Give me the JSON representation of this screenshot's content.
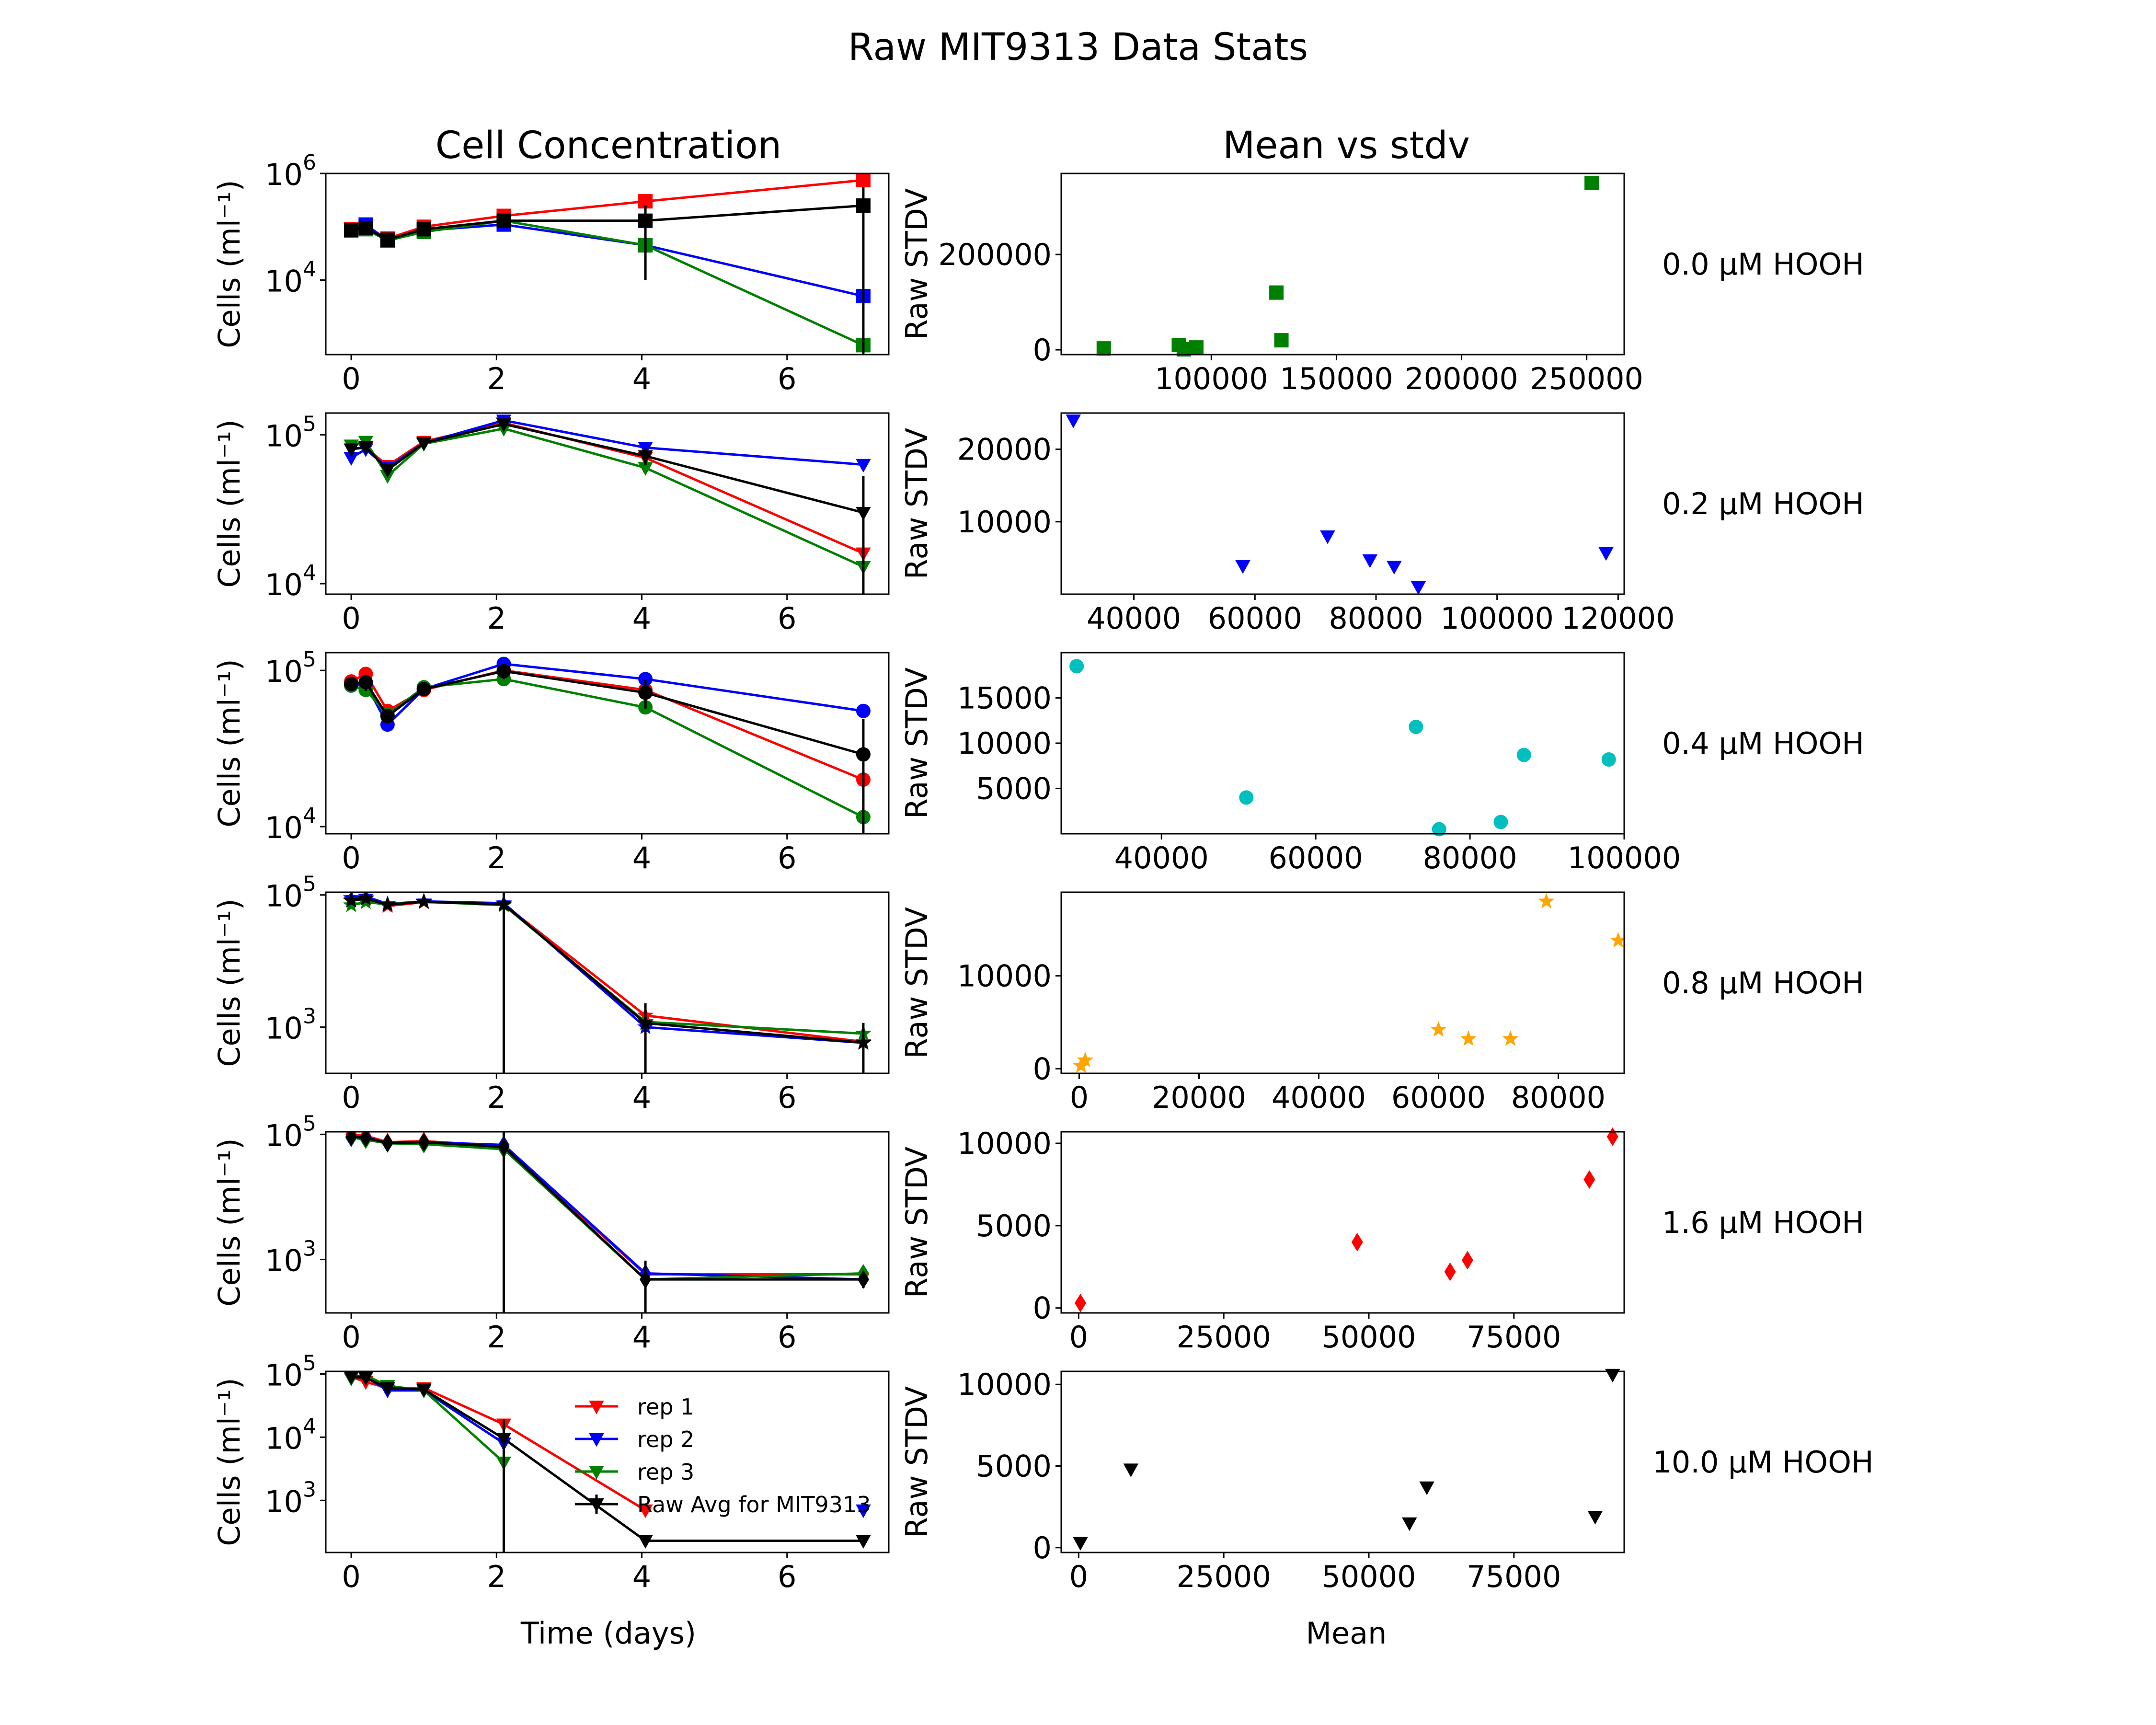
{
  "title": "Raw MIT9313 Data Stats",
  "column_titles": {
    "left": "Cell Concentration",
    "right": "Mean vs stdv"
  },
  "left_ylabel": "Cells (ml⁻¹)",
  "right_ylabel": "Raw STDV",
  "left_xlabel": "Time (days)",
  "right_xlabel": "Mean",
  "legend": {
    "location": "bottom-left panel, lower middle",
    "entries": [
      "rep 1",
      "rep 2",
      "rep 3",
      "Raw Avg for MIT9313"
    ]
  },
  "colors": {
    "rep1": "#ff0000",
    "rep2": "#0000ff",
    "rep3": "#008000",
    "avg": "#000000"
  },
  "chart_data": [
    {
      "type": "line",
      "scale": "log-y",
      "treatment": "0.0 µM HOOH",
      "marker": "square",
      "xlim": [
        -0.35,
        7.4
      ],
      "ylim": [
        400,
        1000000
      ],
      "x": [
        0,
        0.2,
        0.5,
        1,
        2.1,
        4.05,
        7.05
      ],
      "xticks": [
        0,
        2,
        4,
        6
      ],
      "yticks": [
        {
          "value": 10000,
          "base": "10",
          "exp": "4"
        },
        {
          "value": 1000000,
          "base": "10",
          "exp": "6"
        }
      ],
      "series": [
        {
          "name": "rep 1",
          "color": "#ff0000",
          "values": [
            90000,
            100000,
            60000,
            100000,
            160000,
            300000,
            750000
          ]
        },
        {
          "name": "rep 2",
          "color": "#0000ff",
          "values": [
            85000,
            110000,
            55000,
            85000,
            110000,
            45000,
            5000
          ]
        },
        {
          "name": "rep 3",
          "color": "#008000",
          "values": [
            85000,
            90000,
            55000,
            80000,
            130000,
            45000,
            600
          ]
        },
        {
          "name": "Raw Avg for MIT9313",
          "color": "#000000",
          "values": [
            87000,
            95000,
            57000,
            90000,
            130000,
            130000,
            250000
          ],
          "errors": [
            3000,
            10000,
            3000,
            10000,
            20000,
            120000,
            300000
          ]
        }
      ],
      "stats": {
        "color": "#008000",
        "xlim": [
          40000,
          265000
        ],
        "ylim": [
          -10000,
          370000
        ],
        "xticks": [
          100000,
          150000,
          200000,
          250000
        ],
        "yticks": [
          0,
          200000
        ],
        "points": [
          [
            57000,
            3000
          ],
          [
            87000,
            10000
          ],
          [
            89000,
            1000
          ],
          [
            94000,
            5000
          ],
          [
            126000,
            120000
          ],
          [
            128000,
            20000
          ],
          [
            252000,
            350000
          ]
        ]
      }
    },
    {
      "type": "line",
      "scale": "log-y",
      "treatment": "0.2 µM HOOH",
      "marker": "triangle-down",
      "xlim": [
        -0.35,
        7.4
      ],
      "ylim": [
        8500,
        140000
      ],
      "x": [
        0,
        0.2,
        0.5,
        1,
        2.1,
        4.05,
        7.05
      ],
      "xticks": [
        0,
        2,
        4,
        6
      ],
      "yticks": [
        {
          "value": 10000,
          "base": "10",
          "exp": "4"
        },
        {
          "value": 100000,
          "base": "10",
          "exp": "5"
        }
      ],
      "series": [
        {
          "name": "rep 1",
          "color": "#ff0000",
          "values": [
            80000,
            82000,
            62000,
            90000,
            120000,
            70000,
            16000
          ]
        },
        {
          "name": "rep 2",
          "color": "#0000ff",
          "values": [
            70000,
            80000,
            60000,
            88000,
            125000,
            82000,
            63000
          ]
        },
        {
          "name": "rep 3",
          "color": "#008000",
          "values": [
            85000,
            90000,
            53000,
            87000,
            110000,
            60000,
            13000
          ]
        },
        {
          "name": "Raw Avg for MIT9313",
          "color": "#000000",
          "values": [
            80000,
            83000,
            58000,
            88000,
            118000,
            72000,
            30000
          ],
          "errors": [
            8000,
            5000,
            4000,
            2000,
            6000,
            9000,
            23000
          ]
        }
      ],
      "stats": {
        "color": "#0000ff",
        "xlim": [
          28000,
          121000
        ],
        "ylim": [
          0,
          25000
        ],
        "xticks": [
          40000,
          60000,
          80000,
          100000,
          120000
        ],
        "yticks": [
          10000,
          20000
        ],
        "points": [
          [
            30000,
            24000
          ],
          [
            58000,
            3900
          ],
          [
            72000,
            8000
          ],
          [
            79000,
            4700
          ],
          [
            83000,
            3800
          ],
          [
            87000,
            1000
          ],
          [
            118000,
            5700
          ]
        ]
      }
    },
    {
      "type": "line",
      "scale": "log-y",
      "treatment": "0.4 µM HOOH",
      "marker": "circle",
      "xlim": [
        -0.35,
        7.4
      ],
      "ylim": [
        9000,
        130000
      ],
      "x": [
        0,
        0.2,
        0.5,
        1,
        2.1,
        4.05,
        7.05
      ],
      "xticks": [
        0,
        2,
        4,
        6
      ],
      "yticks": [
        {
          "value": 10000,
          "base": "10",
          "exp": "4"
        },
        {
          "value": 100000,
          "base": "10",
          "exp": "5"
        }
      ],
      "series": [
        {
          "name": "rep 1",
          "color": "#ff0000",
          "values": [
            85000,
            95000,
            55000,
            75000,
            100000,
            75000,
            20000
          ]
        },
        {
          "name": "rep 2",
          "color": "#0000ff",
          "values": [
            80000,
            82000,
            45000,
            76000,
            110000,
            88000,
            55000
          ]
        },
        {
          "name": "rep 3",
          "color": "#008000",
          "values": [
            80000,
            75000,
            52000,
            78000,
            88000,
            58000,
            11500
          ]
        },
        {
          "name": "Raw Avg for MIT9313",
          "color": "#000000",
          "values": [
            82000,
            84000,
            51000,
            76000,
            99000,
            72000,
            29000
          ],
          "errors": [
            3000,
            10000,
            5000,
            2000,
            11000,
            15000,
            20000
          ]
        }
      ],
      "stats": {
        "color": "#00bfbf",
        "xlim": [
          27000,
          100000
        ],
        "ylim": [
          0,
          20000
        ],
        "xticks": [
          40000,
          60000,
          80000,
          100000
        ],
        "yticks": [
          5000,
          10000,
          15000
        ],
        "points": [
          [
            29000,
            18500
          ],
          [
            51000,
            4000
          ],
          [
            73000,
            11800
          ],
          [
            76000,
            500
          ],
          [
            84000,
            1300
          ],
          [
            87000,
            8700
          ],
          [
            98000,
            8200
          ]
        ]
      }
    },
    {
      "type": "line",
      "scale": "log-y",
      "treatment": "0.8 µM HOOH",
      "marker": "star",
      "xlim": [
        -0.35,
        7.4
      ],
      "ylim": [
        200,
        110000
      ],
      "x": [
        0,
        0.2,
        0.5,
        1,
        2.1,
        4.05,
        7.05
      ],
      "xticks": [
        0,
        2,
        4,
        6
      ],
      "yticks": [
        {
          "value": 1000,
          "base": "10",
          "exp": "3"
        },
        {
          "value": 100000,
          "base": "10",
          "exp": "5"
        }
      ],
      "series": [
        {
          "name": "rep 1",
          "color": "#ff0000",
          "values": [
            85000,
            90000,
            68000,
            78000,
            72000,
            1500,
            600
          ]
        },
        {
          "name": "rep 2",
          "color": "#0000ff",
          "values": [
            90000,
            95000,
            73000,
            80000,
            75000,
            1000,
            580
          ]
        },
        {
          "name": "rep 3",
          "color": "#008000",
          "values": [
            70000,
            78000,
            72000,
            79000,
            70000,
            1200,
            800
          ]
        },
        {
          "name": "Raw Avg for MIT9313",
          "color": "#000000",
          "values": [
            82000,
            88000,
            71000,
            79000,
            72000,
            1150,
            580
          ],
          "errors": [
            10000,
            8000,
            2000,
            1000,
            72000,
            1150,
            580
          ]
        }
      ],
      "stats": {
        "color": "#ffa500",
        "xlim": [
          -3000,
          91000
        ],
        "ylim": [
          -500,
          19000
        ],
        "xticks": [
          0,
          20000,
          40000,
          60000,
          80000
        ],
        "yticks": [
          0,
          10000
        ],
        "points": [
          [
            300,
            300
          ],
          [
            1000,
            900
          ],
          [
            60000,
            4200
          ],
          [
            65000,
            3200
          ],
          [
            72000,
            3200
          ],
          [
            78000,
            18000
          ],
          [
            90000,
            13800
          ]
        ]
      }
    },
    {
      "type": "line",
      "scale": "log-y",
      "treatment": "1.6 µM HOOH",
      "marker": "diamond",
      "xlim": [
        -0.35,
        7.4
      ],
      "ylim": [
        140,
        110000
      ],
      "x": [
        0,
        0.2,
        0.5,
        1,
        2.1,
        4.05,
        7.05
      ],
      "xticks": [
        0,
        2,
        4,
        6
      ],
      "yticks": [
        {
          "value": 1000,
          "base": "10",
          "exp": "3"
        },
        {
          "value": 100000,
          "base": "10",
          "exp": "5"
        }
      ],
      "series": [
        {
          "name": "rep 1",
          "color": "#ff0000",
          "values": [
            100000,
            95000,
            75000,
            78000,
            65000,
            580,
            580
          ]
        },
        {
          "name": "rep 2",
          "color": "#0000ff",
          "values": [
            88000,
            90000,
            72000,
            75000,
            68000,
            600,
            480
          ]
        },
        {
          "name": "rep 3",
          "color": "#008000",
          "values": [
            90000,
            82000,
            72000,
            70000,
            58000,
            480,
            600
          ]
        },
        {
          "name": "Raw Avg for MIT9313",
          "color": "#000000",
          "values": [
            92000,
            88000,
            73000,
            75000,
            63000,
            480,
            480
          ],
          "errors": [
            7000,
            6000,
            2000,
            4000,
            63000,
            480,
            130
          ]
        }
      ],
      "stats": {
        "color": "#ff0000",
        "xlim": [
          -3000,
          94000
        ],
        "ylim": [
          -300,
          10700
        ],
        "xticks": [
          0,
          25000,
          50000,
          75000
        ],
        "yticks": [
          0,
          5000,
          10000
        ],
        "points": [
          [
            300,
            300
          ],
          [
            48000,
            4000
          ],
          [
            64000,
            2200
          ],
          [
            67000,
            2900
          ],
          [
            88000,
            7800
          ],
          [
            92000,
            10400
          ]
        ]
      }
    },
    {
      "type": "line",
      "scale": "log-y",
      "treatment": "10.0 µM HOOH",
      "marker": "triangle-down",
      "xlim": [
        -0.35,
        7.4
      ],
      "ylim": [
        150,
        110000
      ],
      "x": [
        0,
        0.2,
        0.5,
        1,
        2.1,
        4.05,
        7.05
      ],
      "xticks": [
        0,
        2,
        4,
        6
      ],
      "yticks": [
        {
          "value": 1000,
          "base": "10",
          "exp": "3"
        },
        {
          "value": 10000,
          "base": "10",
          "exp": "4"
        },
        {
          "value": 100000,
          "base": "10",
          "exp": "5"
        }
      ],
      "series": [
        {
          "name": "rep 1",
          "color": "#ff0000",
          "values": [
            90000,
            75000,
            60000,
            60000,
            16000,
            700,
            null
          ]
        },
        {
          "name": "rep 2",
          "color": "#0000ff",
          "values": [
            95000,
            90000,
            55000,
            55000,
            8000,
            null,
            700
          ]
        },
        {
          "name": "rep 3",
          "color": "#008000",
          "values": [
            85000,
            95000,
            65000,
            55000,
            4000,
            null,
            null
          ]
        },
        {
          "name": "Raw Avg for MIT9313",
          "color": "#000000",
          "values": [
            90000,
            87000,
            60000,
            57000,
            9500,
            230,
            230
          ],
          "errors": [
            4000,
            8000,
            4000,
            3000,
            9500,
            0,
            0
          ]
        }
      ],
      "stats": {
        "color": "#000000",
        "xlim": [
          -3000,
          94000
        ],
        "ylim": [
          -300,
          10800
        ],
        "xticks": [
          0,
          25000,
          50000,
          75000
        ],
        "yticks": [
          0,
          5000,
          10000
        ],
        "points": [
          [
            300,
            300
          ],
          [
            9000,
            4800
          ],
          [
            57000,
            1500
          ],
          [
            60000,
            3700
          ],
          [
            89000,
            1900
          ],
          [
            92000,
            10600
          ]
        ]
      }
    }
  ]
}
